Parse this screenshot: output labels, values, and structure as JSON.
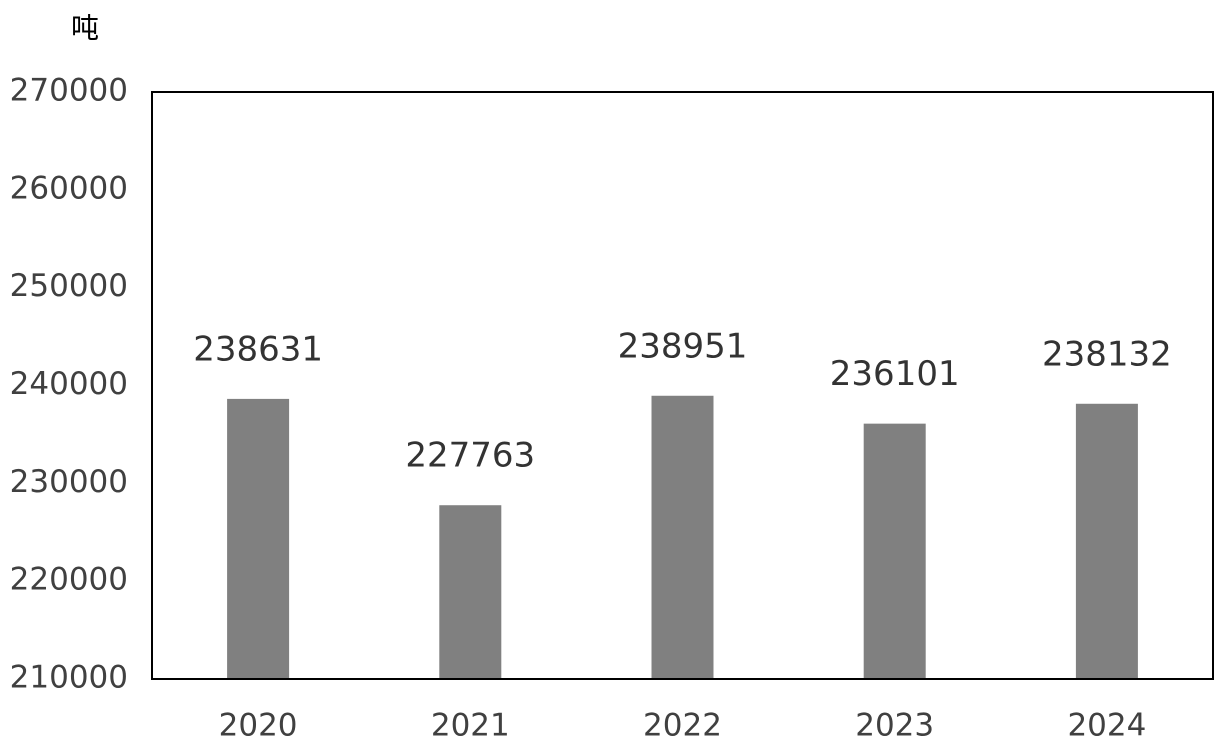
{
  "chart_data": {
    "type": "bar",
    "y_label": "吨",
    "categories": [
      "2020",
      "2021",
      "2022",
      "2023",
      "2024"
    ],
    "values": [
      238631,
      227763,
      238951,
      236101,
      238132
    ],
    "color": "#808080",
    "ylim": [
      210000,
      270000
    ],
    "yticks": [
      210000,
      220000,
      230000,
      240000,
      250000,
      260000,
      270000
    ],
    "grid": false
  }
}
